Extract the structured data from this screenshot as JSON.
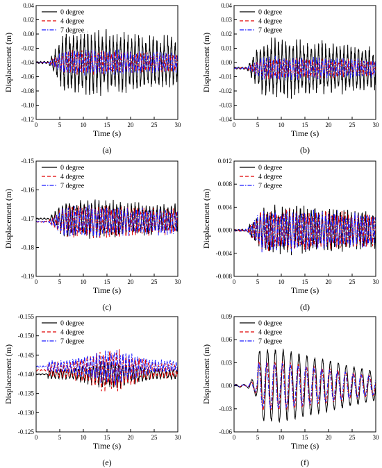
{
  "chart_data": [
    {
      "panel": "(a)",
      "type": "line",
      "xlabel": "Time (s)",
      "ylabel": "Displacement (m)",
      "xlim": [
        0,
        30
      ],
      "ylim": [
        -0.12,
        0.04
      ],
      "xticks": [
        "0",
        "5",
        "10",
        "15",
        "20",
        "25",
        "30"
      ],
      "yticks": [
        "-0.12",
        "-0.10",
        "-0.08",
        "-0.06",
        "-0.04",
        "-0.02",
        "0.00",
        "0.02",
        "0.04"
      ],
      "ytick_values": [
        -0.12,
        -0.1,
        -0.08,
        -0.06,
        -0.04,
        -0.02,
        0.0,
        0.02,
        0.04
      ],
      "series": [
        {
          "name": "0 degree",
          "color": "#000000",
          "dash": "solid",
          "baseline": -0.04,
          "amplitude": 0.05
        },
        {
          "name": "4 degree",
          "color": "#e00000",
          "dash": "dashed",
          "baseline": -0.04,
          "amplitude": 0.018
        },
        {
          "name": "7 degree",
          "color": "#1a1aff",
          "dash": "dashdot",
          "baseline": -0.04,
          "amplitude": 0.02
        }
      ]
    },
    {
      "panel": "(b)",
      "type": "line",
      "xlabel": "Time (s)",
      "ylabel": "Displacement (m)",
      "xlim": [
        0,
        30
      ],
      "ylim": [
        -0.04,
        0.04
      ],
      "xticks": [
        "0",
        "5",
        "10",
        "15",
        "20",
        "25",
        "30"
      ],
      "yticks": [
        "-0.04",
        "-0.03",
        "-0.02",
        "-0.01",
        "0.00",
        "0.01",
        "0.02",
        "0.03",
        "0.04"
      ],
      "ytick_values": [
        -0.04,
        -0.03,
        -0.02,
        -0.01,
        0.0,
        0.01,
        0.02,
        0.03,
        0.04
      ],
      "series": [
        {
          "name": "0 degree",
          "color": "#000000",
          "dash": "solid",
          "baseline": -0.004,
          "amplitude": 0.022
        },
        {
          "name": "4 degree",
          "color": "#e00000",
          "dash": "dashed",
          "baseline": -0.004,
          "amplitude": 0.008
        },
        {
          "name": "7 degree",
          "color": "#1a1aff",
          "dash": "dashdot",
          "baseline": -0.004,
          "amplitude": 0.009
        }
      ]
    },
    {
      "panel": "(c)",
      "type": "line",
      "xlabel": "Time (s)",
      "ylabel": "Displacement (m)",
      "xlim": [
        0,
        30
      ],
      "ylim": [
        -0.19,
        -0.15
      ],
      "xticks": [
        "0",
        "5",
        "10",
        "15",
        "20",
        "25",
        "30"
      ],
      "yticks": [
        "-0.19",
        "-0.18",
        "-0.17",
        "-0.16",
        "-0.15"
      ],
      "ytick_values": [
        -0.19,
        -0.18,
        -0.17,
        -0.16,
        -0.15
      ],
      "series": [
        {
          "name": "0 degree",
          "color": "#000000",
          "dash": "solid",
          "baseline": -0.17,
          "amplitude": 0.007
        },
        {
          "name": "4 degree",
          "color": "#e00000",
          "dash": "dashed",
          "baseline": -0.171,
          "amplitude": 0.006
        },
        {
          "name": "7 degree",
          "color": "#1a1aff",
          "dash": "dashdot",
          "baseline": -0.171,
          "amplitude": 0.006
        }
      ]
    },
    {
      "panel": "(d)",
      "type": "line",
      "xlabel": "Time (s)",
      "ylabel": "Displacement (m)",
      "xlim": [
        0,
        30
      ],
      "ylim": [
        -0.008,
        0.012
      ],
      "xticks": [
        "0",
        "5",
        "10",
        "15",
        "20",
        "25",
        "30"
      ],
      "yticks": [
        "-0.008",
        "-0.004",
        "0.000",
        "0.004",
        "0.008",
        "0.012"
      ],
      "ytick_values": [
        -0.008,
        -0.004,
        0.0,
        0.004,
        0.008,
        0.012
      ],
      "series": [
        {
          "name": "0 degree",
          "color": "#000000",
          "dash": "solid",
          "baseline": 0.0,
          "amplitude": 0.0045
        },
        {
          "name": "4 degree",
          "color": "#e00000",
          "dash": "dashed",
          "baseline": 0.0,
          "amplitude": 0.004
        },
        {
          "name": "7 degree",
          "color": "#1a1aff",
          "dash": "dashdot",
          "baseline": 0.0,
          "amplitude": 0.004
        }
      ]
    },
    {
      "panel": "(e)",
      "type": "line",
      "xlabel": "Time (s)",
      "ylabel": "Displacement (m)",
      "xlim": [
        0,
        30
      ],
      "ylim": [
        -0.125,
        -0.155
      ],
      "xticks": [
        "0",
        "5",
        "10",
        "15",
        "20",
        "25",
        "30"
      ],
      "yticks": [
        "-0.125",
        "-0.130",
        "-0.135",
        "-0.140",
        "-0.145",
        "-0.150",
        "-0.155"
      ],
      "ytick_values": [
        -0.125,
        -0.13,
        -0.135,
        -0.14,
        -0.145,
        -0.15,
        -0.155
      ],
      "series": [
        {
          "name": "0 degree",
          "color": "#000000",
          "dash": "solid",
          "baseline": -0.14,
          "amplitude": 0.004
        },
        {
          "name": "4 degree",
          "color": "#e00000",
          "dash": "dashed",
          "baseline": -0.141,
          "amplitude": 0.006
        },
        {
          "name": "7 degree",
          "color": "#1a1aff",
          "dash": "dashdot",
          "baseline": -0.142,
          "amplitude": 0.005
        }
      ]
    },
    {
      "panel": "(f)",
      "type": "line",
      "xlabel": "Time (s)",
      "ylabel": "Displacement (m)",
      "xlim": [
        0,
        30
      ],
      "ylim": [
        -0.06,
        0.09
      ],
      "xticks": [
        "0",
        "5",
        "10",
        "15",
        "20",
        "25",
        "30"
      ],
      "yticks": [
        "-0.06",
        "-0.03",
        "0.00",
        "0.03",
        "0.06",
        "0.09"
      ],
      "ytick_values": [
        -0.06,
        -0.03,
        0.0,
        0.03,
        0.06,
        0.09
      ],
      "series": [
        {
          "name": "0 degree",
          "color": "#000000",
          "dash": "solid",
          "baseline": 0.0,
          "amplitude": 0.048
        },
        {
          "name": "4 degree",
          "color": "#e00000",
          "dash": "dashed",
          "baseline": 0.0,
          "amplitude": 0.032
        },
        {
          "name": "7 degree",
          "color": "#1a1aff",
          "dash": "dashdot",
          "baseline": 0.0,
          "amplitude": 0.03
        }
      ]
    }
  ]
}
